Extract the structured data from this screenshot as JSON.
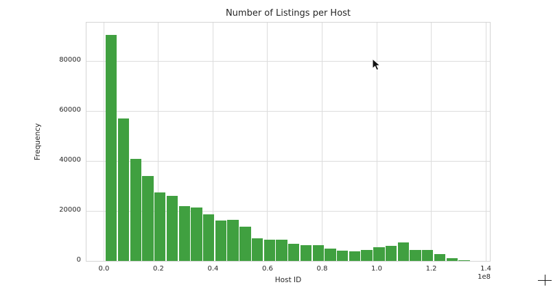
{
  "figure": {
    "title": "Number of Listings per Host",
    "xlabel": "Host ID",
    "ylabel": "Frequency",
    "x_offset_label": "1e8",
    "bar_color": "#40a040",
    "grid_color": "#dcdcdc",
    "spine_color": "#d4d4d4",
    "text_color": "#262626",
    "background_color": "#ffffff"
  },
  "chart_data": {
    "type": "bar",
    "subtype": "histogram",
    "title": "Number of Listings per Host",
    "xlabel": "Host ID",
    "ylabel": "Frequency",
    "x_scale_factor": "1e8",
    "grid": true,
    "legend": false,
    "x_tick_labels": [
      "0.0",
      "0.2",
      "0.4",
      "0.6",
      "0.8",
      "1.0",
      "1.2",
      "1.4"
    ],
    "x_tick_values": [
      0,
      20000000,
      40000000,
      60000000,
      80000000,
      100000000,
      120000000,
      140000000
    ],
    "y_tick_labels": [
      "0",
      "20000",
      "40000",
      "60000",
      "80000"
    ],
    "y_tick_values": [
      0,
      20000,
      40000,
      60000,
      80000
    ],
    "xlim": [
      -6400000,
      141500000
    ],
    "ylim": [
      0,
      95500
    ],
    "bin_start": 500000,
    "bin_width": 4460000,
    "values": [
      90700,
      57000,
      41000,
      34000,
      27500,
      26100,
      22000,
      21400,
      18700,
      16200,
      16400,
      13700,
      9000,
      8500,
      8400,
      7000,
      6400,
      6300,
      4900,
      4200,
      3800,
      4500,
      5600,
      6100,
      7400,
      4400,
      4300,
      2700,
      1200,
      250
    ]
  },
  "overlay": {
    "cursor_icon": "mouse-pointer",
    "plus_glyph": "+"
  }
}
